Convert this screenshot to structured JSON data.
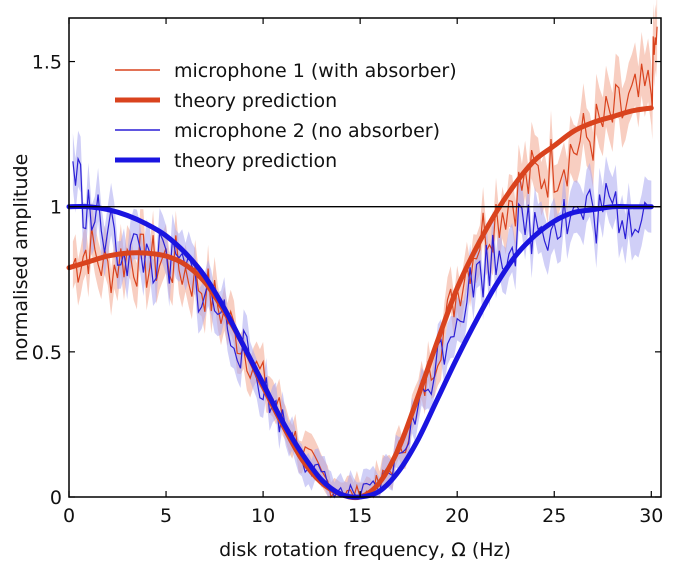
{
  "chart_data": {
    "type": "line",
    "title": "",
    "xlabel": "disk rotation frequency, Ω (Hz)",
    "ylabel": "normalised amplitude",
    "xlim": [
      0,
      30.5
    ],
    "ylim": [
      0,
      1.65
    ],
    "xticks": [
      0,
      5,
      10,
      15,
      20,
      25,
      30
    ],
    "xtick_labels": [
      "0",
      "5",
      "10",
      "15",
      "20",
      "25",
      "30"
    ],
    "yticks": [
      0,
      0.5,
      1,
      1.5
    ],
    "ytick_labels": [
      "0",
      "0.5",
      "1",
      "1.5"
    ],
    "reference_line": {
      "y": 1,
      "color": "#000000"
    },
    "legend": {
      "placement": "top-left"
    },
    "series": [
      {
        "name": "microphone 1 (with absorber)",
        "kind": "measured",
        "color": "#d9431e",
        "band_color": "#f2a58e",
        "x": [
          0.2,
          1,
          2,
          3,
          4,
          5,
          6,
          7,
          8,
          9,
          10,
          11,
          12,
          13,
          14,
          15,
          16,
          17,
          18,
          19,
          20,
          21,
          22,
          23,
          24,
          25,
          26,
          27,
          28,
          29,
          30,
          30.3
        ],
        "y": [
          0.8,
          0.86,
          0.78,
          0.84,
          0.8,
          0.82,
          0.78,
          0.72,
          0.63,
          0.52,
          0.4,
          0.28,
          0.16,
          0.07,
          0.01,
          0.0,
          0.04,
          0.15,
          0.32,
          0.52,
          0.72,
          0.88,
          0.98,
          1.05,
          1.1,
          1.15,
          1.2,
          1.25,
          1.3,
          1.35,
          1.4,
          1.62
        ]
      },
      {
        "name": "theory prediction",
        "kind": "theory",
        "color": "#d9431e",
        "x": [
          0,
          1,
          2,
          3,
          4,
          5,
          6,
          7,
          8,
          9,
          10,
          11,
          12,
          13,
          14,
          15,
          16,
          17,
          18,
          19,
          20,
          21,
          22,
          23,
          24,
          25,
          26,
          27,
          28,
          29,
          30
        ],
        "y": [
          0.79,
          0.81,
          0.83,
          0.84,
          0.84,
          0.83,
          0.8,
          0.74,
          0.64,
          0.52,
          0.38,
          0.25,
          0.13,
          0.05,
          0.01,
          0.0,
          0.05,
          0.17,
          0.35,
          0.54,
          0.72,
          0.86,
          0.98,
          1.08,
          1.16,
          1.21,
          1.26,
          1.29,
          1.31,
          1.33,
          1.34
        ]
      },
      {
        "name": "microphone 2 (no absorber)",
        "kind": "measured",
        "color": "#2b1fd6",
        "band_color": "#a9a8f0",
        "x": [
          0.2,
          1,
          2,
          3,
          4,
          5,
          6,
          7,
          8,
          9,
          10,
          11,
          12,
          13,
          14,
          15,
          16,
          17,
          18,
          19,
          20,
          21,
          22,
          23,
          24,
          25,
          26,
          27,
          28,
          29,
          30
        ],
        "y": [
          1.15,
          0.98,
          0.9,
          0.85,
          0.83,
          0.8,
          0.78,
          0.7,
          0.62,
          0.5,
          0.38,
          0.26,
          0.15,
          0.06,
          0.01,
          0.0,
          0.03,
          0.14,
          0.3,
          0.48,
          0.64,
          0.76,
          0.84,
          0.9,
          0.94,
          0.96,
          0.97,
          0.98,
          0.98,
          0.99,
          1.0
        ]
      },
      {
        "name": "theory prediction",
        "kind": "theory",
        "color": "#1a14e0",
        "x": [
          0,
          1,
          2,
          3,
          4,
          5,
          6,
          7,
          8,
          9,
          10,
          11,
          12,
          13,
          14,
          15,
          16,
          17,
          18,
          19,
          20,
          21,
          22,
          23,
          24,
          25,
          26,
          27,
          28,
          29,
          30
        ],
        "y": [
          1.0,
          1.0,
          0.99,
          0.97,
          0.94,
          0.9,
          0.84,
          0.76,
          0.65,
          0.52,
          0.39,
          0.26,
          0.15,
          0.06,
          0.01,
          0.0,
          0.02,
          0.09,
          0.2,
          0.34,
          0.48,
          0.61,
          0.73,
          0.83,
          0.9,
          0.95,
          0.98,
          0.99,
          1.0,
          1.0,
          1.0
        ]
      }
    ]
  }
}
